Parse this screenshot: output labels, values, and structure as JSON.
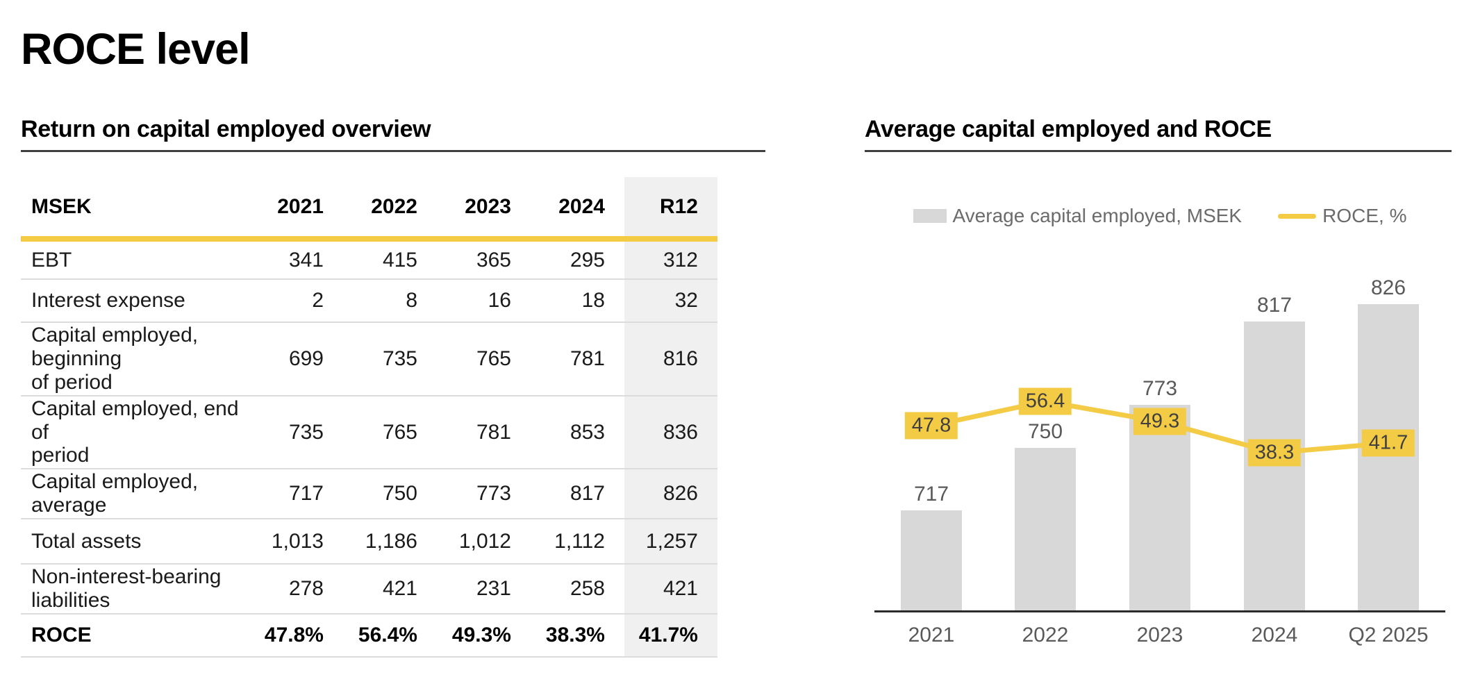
{
  "page": {
    "title": "ROCE level"
  },
  "left": {
    "heading": "Return on capital employed overview",
    "table": {
      "unit_header": "MSEK",
      "col_headers": [
        "2021",
        "2022",
        "2023",
        "2024",
        "R12"
      ],
      "rows": [
        {
          "label": "EBT",
          "values": [
            "341",
            "415",
            "365",
            "295",
            "312"
          ],
          "bold": false
        },
        {
          "label": "Interest expense",
          "values": [
            "2",
            "8",
            "16",
            "18",
            "32"
          ],
          "bold": false
        },
        {
          "label": "Capital employed,\nbeginning\nof period",
          "values": [
            "699",
            "735",
            "765",
            "781",
            "816"
          ],
          "bold": false
        },
        {
          "label": "Capital employed, end of\nperiod",
          "values": [
            "735",
            "765",
            "781",
            "853",
            "836"
          ],
          "bold": false
        },
        {
          "label": "Capital employed,\naverage",
          "values": [
            "717",
            "750",
            "773",
            "817",
            "826"
          ],
          "bold": false
        },
        {
          "label": "Total assets",
          "values": [
            "1,013",
            "1,186",
            "1,012",
            "1,112",
            "1,257"
          ],
          "bold": false
        },
        {
          "label": "Non-interest-bearing\nliabilities",
          "values": [
            "278",
            "421",
            "231",
            "258",
            "421"
          ],
          "bold": false
        },
        {
          "label": "ROCE",
          "values": [
            "47.8%",
            "56.4%",
            "49.3%",
            "38.3%",
            "41.7%"
          ],
          "bold": true
        }
      ]
    }
  },
  "right": {
    "heading": "Average capital employed and ROCE",
    "legend": [
      {
        "label": "Average capital employed, MSEK",
        "swatch": "bar"
      },
      {
        "label": "ROCE, %",
        "swatch": "line"
      }
    ]
  },
  "chart_data": {
    "type": "combo",
    "title": "Average capital employed and ROCE",
    "categories": [
      "2021",
      "2022",
      "2023",
      "2024",
      "Q2 2025"
    ],
    "series": [
      {
        "name": "Average capital employed, MSEK",
        "type": "bar",
        "values": [
          717,
          750,
          773,
          817,
          826
        ],
        "color": "#D8D8D8"
      },
      {
        "name": "ROCE, %",
        "type": "line",
        "values": [
          47.8,
          56.4,
          49.3,
          38.3,
          41.7
        ],
        "color": "#F3CB45"
      }
    ],
    "data_labels": true,
    "legend_position": "top",
    "grid": false,
    "y_axes_hidden": true,
    "bar_axis_baseline_value": 664,
    "bar_axis_top_value": 900
  },
  "colors": {
    "accent_yellow": "#F3CB45",
    "bar_gray": "#D8D8D8",
    "r12_shade": "#F0F0F0",
    "divider_gray": "#DCDCDC",
    "chart_text_gray": "#595959",
    "legend_text_gray": "#6B6B6B",
    "heading_underline": "#404040",
    "axis_line": "#2B2B2B",
    "label_box_text": "#404040"
  }
}
